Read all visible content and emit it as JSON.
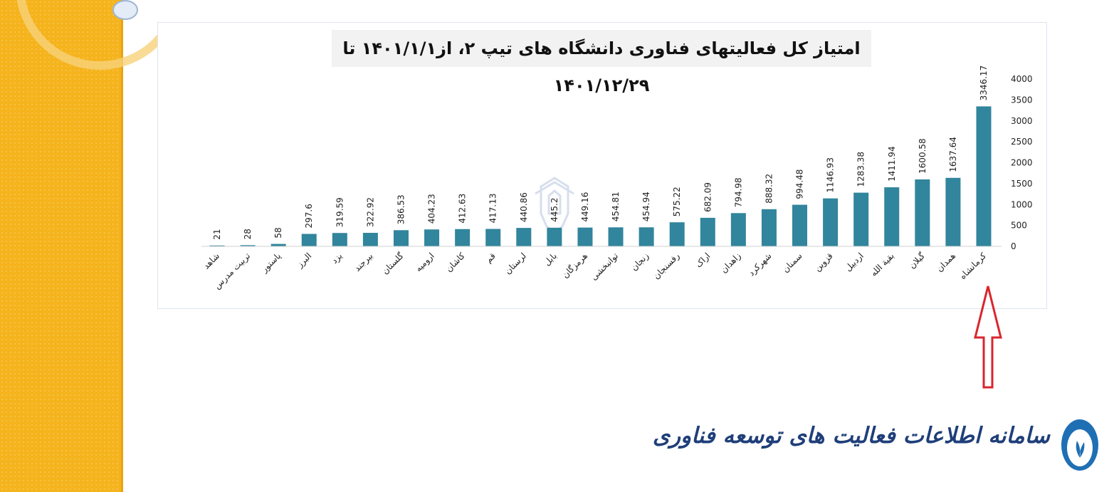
{
  "footer": {
    "logo_text": "سامانه اطلاعات فعالیت های توسعه فناوری"
  },
  "colors": {
    "bar": "#31859c",
    "band": "#f5b31c",
    "arrow": "#d9262c",
    "logo": "#1f3f7a"
  },
  "chart_data": {
    "type": "bar",
    "title": "امتیاز کل فعالیتهای فناوری دانشگاه های تیپ ۲، از۱۴۰۱/۱/۱ تا ۱۴۰۱/۱۲/۲۹",
    "categories": [
      "شاهد",
      "تربیت مدرس",
      "پاستور",
      "البرز",
      "یزد",
      "بیرجند",
      "گلستان",
      "ارومیه",
      "کاشان",
      "قم",
      "لرستان",
      "بابل",
      "هرمزگان",
      "توانبخشی",
      "زنجان",
      "رفسنجان",
      "اراک",
      "زاهدان",
      "شهرکرد",
      "سمنان",
      "قزوین",
      "اردبیل",
      "بقیة الله",
      "گیلان",
      "همدان",
      "کرمانشاه"
    ],
    "values": [
      21,
      28,
      58,
      297.6,
      319.59,
      322.92,
      386.53,
      404.23,
      412.63,
      417.13,
      440.86,
      445.2,
      449.16,
      454.81,
      454.94,
      575.22,
      682.09,
      794.98,
      888.32,
      994.48,
      1146.93,
      1283.38,
      1411.94,
      1600.58,
      1637.64,
      3346.17
    ],
    "value_labels": [
      "21",
      "28",
      "58",
      "297.6",
      "319.59",
      "322.92",
      "386.53",
      "404.23",
      "412.63",
      "417.13",
      "440.86",
      "445.2",
      "449.16",
      "454.81",
      "454.94",
      "575.22",
      "682.09",
      "794.98",
      "888.32",
      "994.48",
      "1146.93",
      "1283.38",
      "1411.94",
      "1600.58",
      "1637.64",
      "3346.17"
    ],
    "yticks": [
      "0",
      "500",
      "1000",
      "1500",
      "2000",
      "2500",
      "3000",
      "3500",
      "4000"
    ],
    "ylim": [
      0,
      4000
    ],
    "y_axis_side": "right",
    "grid": false,
    "legend": "none"
  }
}
